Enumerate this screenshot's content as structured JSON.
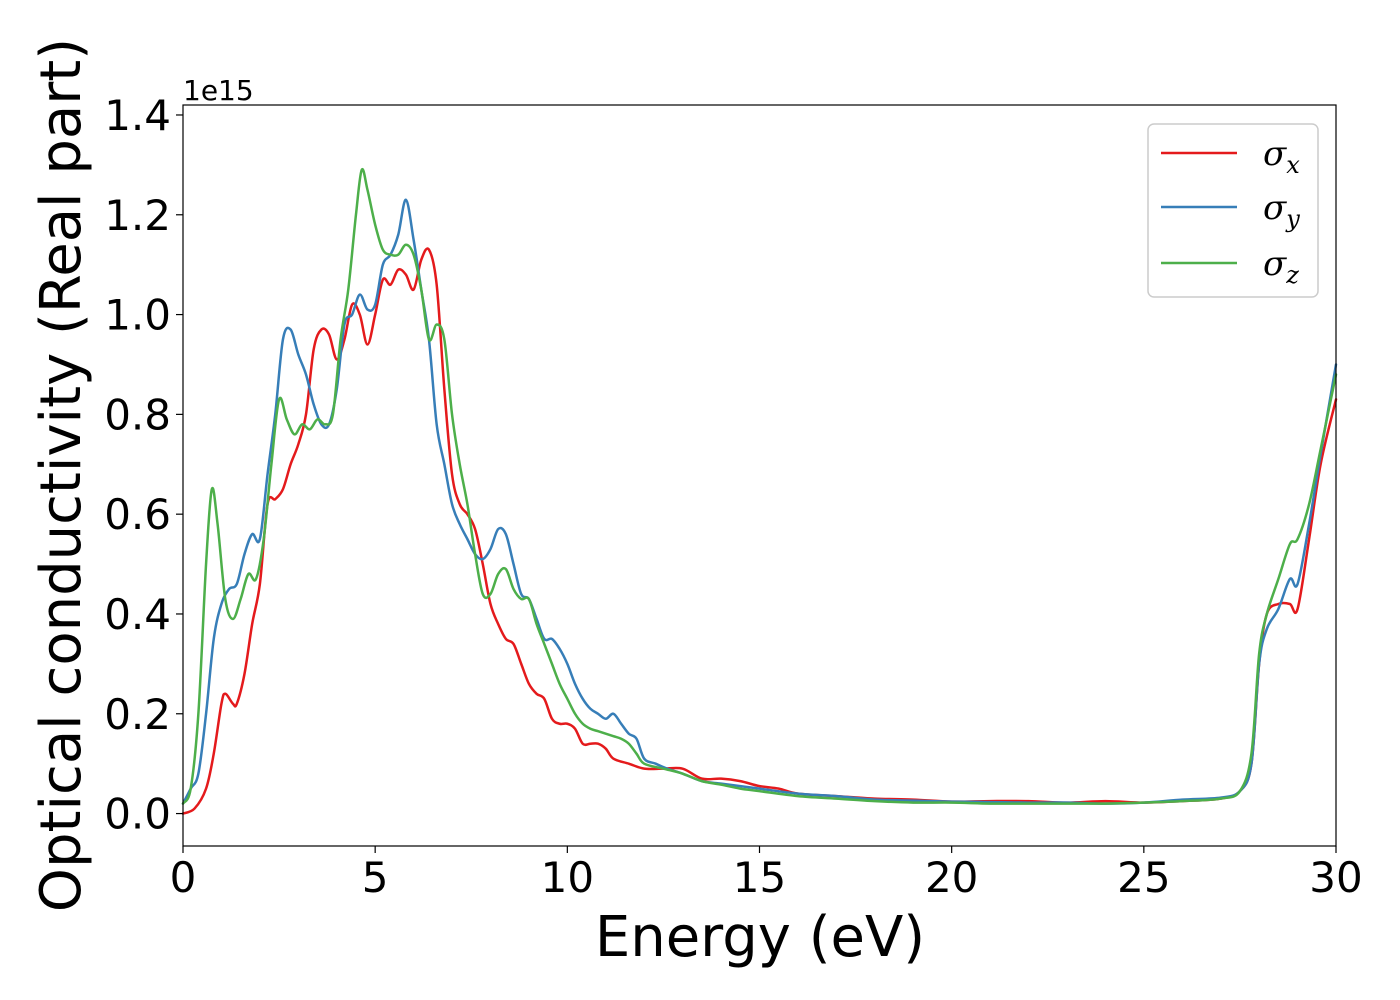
{
  "chart_data": {
    "type": "line",
    "title": "",
    "xlabel": "Energy (eV)",
    "ylabel": "Optical conductivity (Real part)",
    "y_offset_label": "1e15",
    "xlim": [
      0,
      30
    ],
    "ylim": [
      -0.065,
      1.42
    ],
    "xticks": [
      0,
      5,
      10,
      15,
      20,
      25,
      30
    ],
    "xtick_labels": [
      "0",
      "5",
      "10",
      "15",
      "20",
      "25",
      "30"
    ],
    "yticks": [
      0.0,
      0.2,
      0.4,
      0.6,
      0.8,
      1.0,
      1.2,
      1.4
    ],
    "ytick_labels": [
      "0.0",
      "0.2",
      "0.4",
      "0.6",
      "0.8",
      "1.0",
      "1.2",
      "1.4"
    ],
    "grid": false,
    "legend_position": "top-right",
    "series": [
      {
        "name": "σ",
        "subscript": "x",
        "color": "#e41a1c",
        "points": [
          [
            0,
            0.0
          ],
          [
            0.3,
            0.01
          ],
          [
            0.6,
            0.05
          ],
          [
            0.8,
            0.12
          ],
          [
            1.0,
            0.22
          ],
          [
            1.1,
            0.24
          ],
          [
            1.3,
            0.22
          ],
          [
            1.4,
            0.22
          ],
          [
            1.6,
            0.28
          ],
          [
            1.8,
            0.38
          ],
          [
            2.0,
            0.46
          ],
          [
            2.2,
            0.62
          ],
          [
            2.4,
            0.63
          ],
          [
            2.6,
            0.65
          ],
          [
            2.8,
            0.7
          ],
          [
            3.0,
            0.74
          ],
          [
            3.2,
            0.8
          ],
          [
            3.4,
            0.93
          ],
          [
            3.6,
            0.97
          ],
          [
            3.8,
            0.96
          ],
          [
            4.0,
            0.91
          ],
          [
            4.2,
            0.95
          ],
          [
            4.4,
            1.02
          ],
          [
            4.6,
            1.0
          ],
          [
            4.8,
            0.94
          ],
          [
            5.0,
            1.0
          ],
          [
            5.2,
            1.07
          ],
          [
            5.4,
            1.06
          ],
          [
            5.6,
            1.09
          ],
          [
            5.8,
            1.08
          ],
          [
            6.0,
            1.05
          ],
          [
            6.2,
            1.11
          ],
          [
            6.4,
            1.13
          ],
          [
            6.6,
            1.06
          ],
          [
            6.8,
            0.85
          ],
          [
            7.0,
            0.68
          ],
          [
            7.2,
            0.62
          ],
          [
            7.4,
            0.6
          ],
          [
            7.6,
            0.57
          ],
          [
            7.8,
            0.5
          ],
          [
            8.0,
            0.42
          ],
          [
            8.2,
            0.38
          ],
          [
            8.4,
            0.35
          ],
          [
            8.6,
            0.34
          ],
          [
            8.8,
            0.3
          ],
          [
            9.0,
            0.26
          ],
          [
            9.2,
            0.24
          ],
          [
            9.4,
            0.23
          ],
          [
            9.6,
            0.19
          ],
          [
            9.8,
            0.18
          ],
          [
            10.0,
            0.18
          ],
          [
            10.2,
            0.17
          ],
          [
            10.4,
            0.14
          ],
          [
            10.6,
            0.14
          ],
          [
            10.8,
            0.14
          ],
          [
            11.0,
            0.13
          ],
          [
            11.2,
            0.11
          ],
          [
            11.6,
            0.1
          ],
          [
            12.0,
            0.09
          ],
          [
            12.5,
            0.09
          ],
          [
            13.0,
            0.09
          ],
          [
            13.5,
            0.07
          ],
          [
            14.0,
            0.07
          ],
          [
            14.5,
            0.065
          ],
          [
            15.0,
            0.055
          ],
          [
            15.5,
            0.05
          ],
          [
            16.0,
            0.04
          ],
          [
            17.0,
            0.035
          ],
          [
            18.0,
            0.03
          ],
          [
            19.0,
            0.028
          ],
          [
            20.0,
            0.024
          ],
          [
            21.0,
            0.025
          ],
          [
            22.0,
            0.025
          ],
          [
            23.0,
            0.022
          ],
          [
            24.0,
            0.025
          ],
          [
            25.0,
            0.022
          ],
          [
            26.0,
            0.025
          ],
          [
            27.0,
            0.03
          ],
          [
            27.5,
            0.045
          ],
          [
            27.8,
            0.1
          ],
          [
            28.0,
            0.3
          ],
          [
            28.2,
            0.4
          ],
          [
            28.5,
            0.42
          ],
          [
            28.8,
            0.42
          ],
          [
            29.0,
            0.41
          ],
          [
            29.3,
            0.55
          ],
          [
            29.6,
            0.7
          ],
          [
            30.0,
            0.83
          ]
        ]
      },
      {
        "name": "σ",
        "subscript": "y",
        "color": "#377eb8",
        "points": [
          [
            0,
            0.02
          ],
          [
            0.2,
            0.05
          ],
          [
            0.4,
            0.08
          ],
          [
            0.6,
            0.2
          ],
          [
            0.8,
            0.35
          ],
          [
            1.0,
            0.42
          ],
          [
            1.2,
            0.45
          ],
          [
            1.4,
            0.46
          ],
          [
            1.6,
            0.52
          ],
          [
            1.8,
            0.56
          ],
          [
            2.0,
            0.55
          ],
          [
            2.2,
            0.68
          ],
          [
            2.4,
            0.8
          ],
          [
            2.6,
            0.95
          ],
          [
            2.8,
            0.97
          ],
          [
            3.0,
            0.92
          ],
          [
            3.2,
            0.88
          ],
          [
            3.4,
            0.82
          ],
          [
            3.6,
            0.78
          ],
          [
            3.8,
            0.78
          ],
          [
            4.0,
            0.85
          ],
          [
            4.2,
            0.98
          ],
          [
            4.4,
            1.0
          ],
          [
            4.6,
            1.04
          ],
          [
            4.8,
            1.01
          ],
          [
            5.0,
            1.02
          ],
          [
            5.2,
            1.1
          ],
          [
            5.4,
            1.12
          ],
          [
            5.6,
            1.16
          ],
          [
            5.8,
            1.23
          ],
          [
            6.0,
            1.15
          ],
          [
            6.2,
            1.05
          ],
          [
            6.4,
            0.95
          ],
          [
            6.6,
            0.78
          ],
          [
            6.8,
            0.7
          ],
          [
            7.0,
            0.62
          ],
          [
            7.2,
            0.58
          ],
          [
            7.4,
            0.55
          ],
          [
            7.6,
            0.52
          ],
          [
            7.8,
            0.51
          ],
          [
            8.0,
            0.53
          ],
          [
            8.2,
            0.57
          ],
          [
            8.4,
            0.56
          ],
          [
            8.6,
            0.5
          ],
          [
            8.8,
            0.44
          ],
          [
            9.0,
            0.43
          ],
          [
            9.2,
            0.39
          ],
          [
            9.4,
            0.35
          ],
          [
            9.6,
            0.35
          ],
          [
            9.8,
            0.33
          ],
          [
            10.0,
            0.3
          ],
          [
            10.2,
            0.26
          ],
          [
            10.4,
            0.23
          ],
          [
            10.6,
            0.21
          ],
          [
            10.8,
            0.2
          ],
          [
            11.0,
            0.19
          ],
          [
            11.2,
            0.2
          ],
          [
            11.4,
            0.18
          ],
          [
            11.6,
            0.16
          ],
          [
            11.8,
            0.15
          ],
          [
            12.0,
            0.11
          ],
          [
            12.3,
            0.1
          ],
          [
            12.6,
            0.09
          ],
          [
            13.0,
            0.08
          ],
          [
            13.5,
            0.065
          ],
          [
            14.0,
            0.06
          ],
          [
            14.5,
            0.055
          ],
          [
            15.0,
            0.05
          ],
          [
            16.0,
            0.04
          ],
          [
            17.0,
            0.035
          ],
          [
            18.0,
            0.028
          ],
          [
            19.0,
            0.026
          ],
          [
            20.0,
            0.024
          ],
          [
            21.0,
            0.023
          ],
          [
            22.0,
            0.022
          ],
          [
            23.0,
            0.022
          ],
          [
            24.0,
            0.02
          ],
          [
            25.0,
            0.022
          ],
          [
            26.0,
            0.028
          ],
          [
            27.0,
            0.032
          ],
          [
            27.5,
            0.045
          ],
          [
            27.8,
            0.1
          ],
          [
            28.0,
            0.3
          ],
          [
            28.2,
            0.37
          ],
          [
            28.5,
            0.41
          ],
          [
            28.8,
            0.47
          ],
          [
            29.0,
            0.46
          ],
          [
            29.3,
            0.58
          ],
          [
            29.6,
            0.72
          ],
          [
            30.0,
            0.9
          ]
        ]
      },
      {
        "name": "σ",
        "subscript": "z",
        "color": "#4daf4a",
        "points": [
          [
            0,
            0.02
          ],
          [
            0.2,
            0.05
          ],
          [
            0.4,
            0.2
          ],
          [
            0.6,
            0.5
          ],
          [
            0.75,
            0.65
          ],
          [
            0.9,
            0.58
          ],
          [
            1.1,
            0.43
          ],
          [
            1.3,
            0.39
          ],
          [
            1.5,
            0.43
          ],
          [
            1.7,
            0.48
          ],
          [
            1.9,
            0.47
          ],
          [
            2.1,
            0.55
          ],
          [
            2.3,
            0.7
          ],
          [
            2.5,
            0.83
          ],
          [
            2.7,
            0.79
          ],
          [
            2.9,
            0.76
          ],
          [
            3.1,
            0.78
          ],
          [
            3.3,
            0.77
          ],
          [
            3.5,
            0.79
          ],
          [
            3.7,
            0.78
          ],
          [
            3.9,
            0.8
          ],
          [
            4.1,
            0.95
          ],
          [
            4.3,
            1.05
          ],
          [
            4.5,
            1.2
          ],
          [
            4.65,
            1.29
          ],
          [
            4.8,
            1.25
          ],
          [
            5.0,
            1.18
          ],
          [
            5.2,
            1.13
          ],
          [
            5.4,
            1.12
          ],
          [
            5.6,
            1.12
          ],
          [
            5.8,
            1.14
          ],
          [
            6.0,
            1.12
          ],
          [
            6.2,
            1.05
          ],
          [
            6.4,
            0.95
          ],
          [
            6.6,
            0.98
          ],
          [
            6.8,
            0.95
          ],
          [
            7.0,
            0.8
          ],
          [
            7.2,
            0.7
          ],
          [
            7.4,
            0.62
          ],
          [
            7.6,
            0.52
          ],
          [
            7.8,
            0.44
          ],
          [
            8.0,
            0.44
          ],
          [
            8.2,
            0.48
          ],
          [
            8.4,
            0.49
          ],
          [
            8.6,
            0.45
          ],
          [
            8.8,
            0.43
          ],
          [
            9.0,
            0.43
          ],
          [
            9.2,
            0.38
          ],
          [
            9.4,
            0.34
          ],
          [
            9.6,
            0.3
          ],
          [
            9.8,
            0.26
          ],
          [
            10.0,
            0.23
          ],
          [
            10.2,
            0.2
          ],
          [
            10.4,
            0.18
          ],
          [
            10.6,
            0.17
          ],
          [
            10.8,
            0.165
          ],
          [
            11.0,
            0.16
          ],
          [
            11.2,
            0.155
          ],
          [
            11.4,
            0.15
          ],
          [
            11.6,
            0.14
          ],
          [
            11.8,
            0.12
          ],
          [
            12.0,
            0.1
          ],
          [
            12.5,
            0.09
          ],
          [
            13.0,
            0.08
          ],
          [
            13.5,
            0.065
          ],
          [
            14.0,
            0.058
          ],
          [
            14.5,
            0.05
          ],
          [
            15.0,
            0.045
          ],
          [
            16.0,
            0.035
          ],
          [
            17.0,
            0.03
          ],
          [
            18.0,
            0.025
          ],
          [
            19.0,
            0.022
          ],
          [
            20.0,
            0.022
          ],
          [
            21.0,
            0.02
          ],
          [
            22.0,
            0.02
          ],
          [
            23.0,
            0.02
          ],
          [
            24.0,
            0.02
          ],
          [
            25.0,
            0.022
          ],
          [
            26.0,
            0.025
          ],
          [
            27.0,
            0.03
          ],
          [
            27.5,
            0.045
          ],
          [
            27.8,
            0.12
          ],
          [
            28.0,
            0.32
          ],
          [
            28.2,
            0.4
          ],
          [
            28.5,
            0.47
          ],
          [
            28.8,
            0.54
          ],
          [
            29.0,
            0.55
          ],
          [
            29.3,
            0.62
          ],
          [
            29.6,
            0.73
          ],
          [
            30.0,
            0.88
          ]
        ]
      }
    ]
  }
}
